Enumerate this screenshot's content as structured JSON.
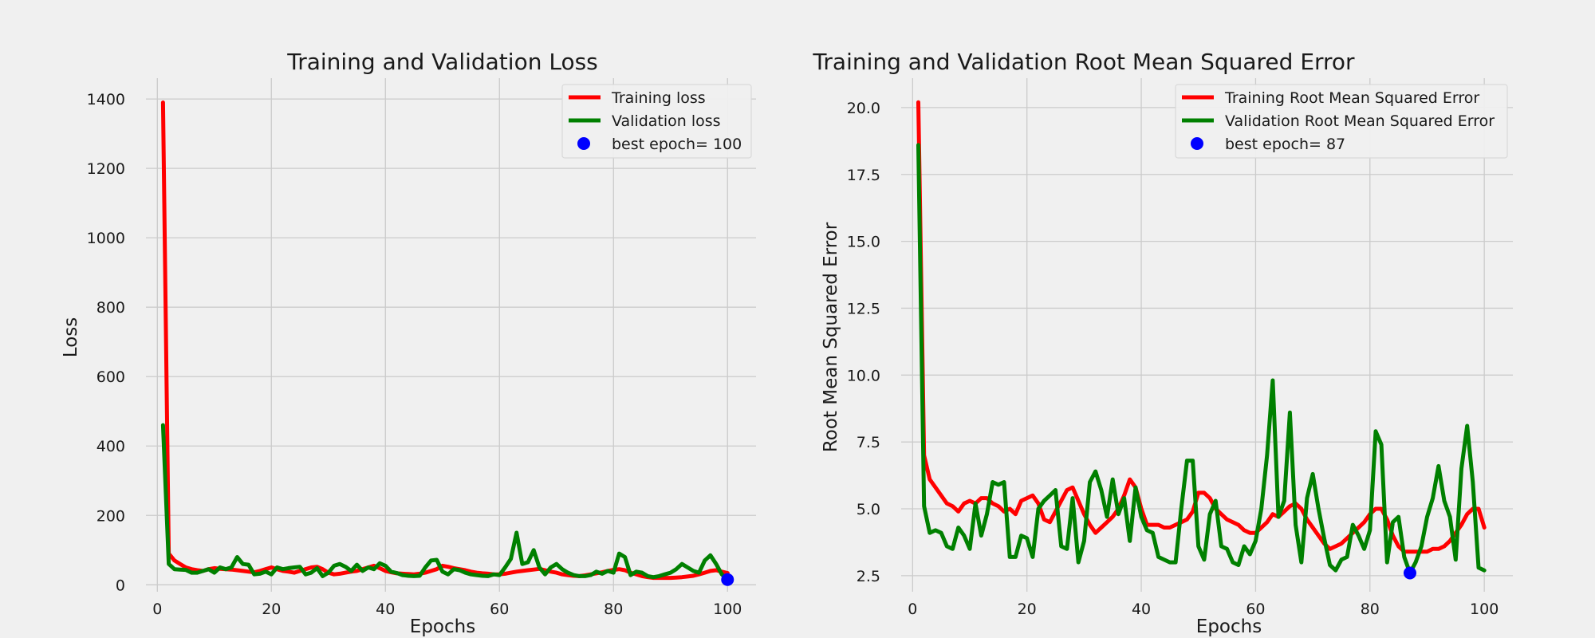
{
  "chart_data": [
    {
      "type": "line",
      "title": "Training and Validation Loss",
      "xlabel": "Epochs",
      "ylabel": "Loss",
      "xlim": [
        -2,
        105
      ],
      "ylim": [
        -20,
        1460
      ],
      "x_ticks": [
        0,
        20,
        40,
        60,
        80,
        100
      ],
      "y_ticks": [
        0,
        200,
        400,
        600,
        800,
        1000,
        1200,
        1400
      ],
      "grid": true,
      "legend_position": "top-right",
      "x": [
        1,
        2,
        3,
        4,
        5,
        6,
        7,
        8,
        9,
        10,
        11,
        12,
        13,
        14,
        15,
        16,
        17,
        18,
        19,
        20,
        21,
        22,
        23,
        24,
        25,
        26,
        27,
        28,
        29,
        30,
        31,
        32,
        33,
        34,
        35,
        36,
        37,
        38,
        39,
        40,
        41,
        42,
        43,
        44,
        45,
        46,
        47,
        48,
        49,
        50,
        51,
        52,
        53,
        54,
        55,
        56,
        57,
        58,
        59,
        60,
        61,
        62,
        63,
        64,
        65,
        66,
        67,
        68,
        69,
        70,
        71,
        72,
        73,
        74,
        75,
        76,
        77,
        78,
        79,
        80,
        81,
        82,
        83,
        84,
        85,
        86,
        87,
        88,
        89,
        90,
        91,
        92,
        93,
        94,
        95,
        96,
        97,
        98,
        99,
        100
      ],
      "series": [
        {
          "name": "Training loss",
          "color": "#ff0000",
          "values": [
            1390,
            90,
            70,
            60,
            50,
            45,
            42,
            40,
            45,
            48,
            46,
            45,
            44,
            42,
            40,
            38,
            36,
            40,
            45,
            50,
            45,
            40,
            38,
            35,
            40,
            45,
            50,
            52,
            45,
            35,
            30,
            32,
            35,
            38,
            40,
            45,
            50,
            55,
            48,
            40,
            36,
            33,
            32,
            31,
            30,
            32,
            35,
            40,
            45,
            55,
            52,
            48,
            45,
            42,
            38,
            35,
            33,
            32,
            30,
            30,
            32,
            35,
            38,
            40,
            42,
            44,
            46,
            42,
            38,
            35,
            30,
            28,
            26,
            25,
            27,
            30,
            33,
            36,
            40,
            43,
            45,
            42,
            35,
            30,
            25,
            22,
            20,
            20,
            20,
            20,
            21,
            22,
            24,
            26,
            30,
            35,
            40,
            42,
            38,
            34
          ]
        },
        {
          "name": "Validation loss",
          "color": "#008000",
          "values": [
            460,
            60,
            45,
            44,
            43,
            35,
            35,
            40,
            45,
            35,
            50,
            45,
            50,
            80,
            60,
            58,
            30,
            32,
            38,
            30,
            50,
            45,
            48,
            50,
            52,
            30,
            35,
            48,
            25,
            35,
            55,
            60,
            52,
            40,
            58,
            40,
            50,
            45,
            62,
            55,
            38,
            34,
            28,
            26,
            25,
            26,
            50,
            70,
            72,
            38,
            30,
            45,
            42,
            35,
            30,
            28,
            26,
            25,
            30,
            28,
            50,
            75,
            150,
            60,
            65,
            100,
            50,
            30,
            50,
            60,
            45,
            35,
            28,
            25,
            25,
            28,
            38,
            32,
            40,
            35,
            90,
            80,
            28,
            38,
            35,
            25,
            22,
            25,
            30,
            35,
            45,
            60,
            50,
            40,
            35,
            70,
            85,
            60,
            30,
            15
          ]
        },
        {
          "name": "best epoch= 100",
          "type": "scatter",
          "color": "#0000ff",
          "x": [
            100
          ],
          "values": [
            15
          ]
        }
      ]
    },
    {
      "type": "line",
      "title": "Training and Validation Root Mean Squared Error",
      "xlabel": "Epochs",
      "ylabel": "Root Mean Squared Error",
      "xlim": [
        -2,
        105
      ],
      "ylim": [
        1.9,
        21.1
      ],
      "x_ticks": [
        0,
        20,
        40,
        60,
        80,
        100
      ],
      "y_ticks": [
        2.5,
        5.0,
        7.5,
        10.0,
        12.5,
        15.0,
        17.5,
        20.0
      ],
      "grid": true,
      "legend_position": "top-right",
      "x": [
        1,
        2,
        3,
        4,
        5,
        6,
        7,
        8,
        9,
        10,
        11,
        12,
        13,
        14,
        15,
        16,
        17,
        18,
        19,
        20,
        21,
        22,
        23,
        24,
        25,
        26,
        27,
        28,
        29,
        30,
        31,
        32,
        33,
        34,
        35,
        36,
        37,
        38,
        39,
        40,
        41,
        42,
        43,
        44,
        45,
        46,
        47,
        48,
        49,
        50,
        51,
        52,
        53,
        54,
        55,
        56,
        57,
        58,
        59,
        60,
        61,
        62,
        63,
        64,
        65,
        66,
        67,
        68,
        69,
        70,
        71,
        72,
        73,
        74,
        75,
        76,
        77,
        78,
        79,
        80,
        81,
        82,
        83,
        84,
        85,
        86,
        87,
        88,
        89,
        90,
        91,
        92,
        93,
        94,
        95,
        96,
        97,
        98,
        99,
        100
      ],
      "series": [
        {
          "name": "Training Root Mean Squared Error",
          "color": "#ff0000",
          "values": [
            20.2,
            7.0,
            6.1,
            5.8,
            5.5,
            5.2,
            5.1,
            4.9,
            5.2,
            5.3,
            5.2,
            5.4,
            5.4,
            5.2,
            5.1,
            4.9,
            5.0,
            4.8,
            5.3,
            5.4,
            5.5,
            5.2,
            4.6,
            4.5,
            4.9,
            5.3,
            5.7,
            5.8,
            5.3,
            4.8,
            4.4,
            4.1,
            4.3,
            4.5,
            4.7,
            5.0,
            5.5,
            6.1,
            5.8,
            5.0,
            4.4,
            4.4,
            4.4,
            4.3,
            4.3,
            4.4,
            4.5,
            4.6,
            4.9,
            5.6,
            5.6,
            5.4,
            5.0,
            4.8,
            4.6,
            4.5,
            4.4,
            4.2,
            4.1,
            4.1,
            4.3,
            4.5,
            4.8,
            4.7,
            4.9,
            5.1,
            5.2,
            5.0,
            4.6,
            4.3,
            4.0,
            3.7,
            3.5,
            3.6,
            3.7,
            3.9,
            4.1,
            4.3,
            4.5,
            4.8,
            5.0,
            5.0,
            4.6,
            4.0,
            3.6,
            3.4,
            3.4,
            3.4,
            3.4,
            3.4,
            3.5,
            3.5,
            3.6,
            3.8,
            4.1,
            4.4,
            4.8,
            5.0,
            5.0,
            4.3
          ]
        },
        {
          "name": "Validation Root Mean Squared Error",
          "color": "#008000",
          "values": [
            18.6,
            5.1,
            4.1,
            4.2,
            4.1,
            3.6,
            3.5,
            4.3,
            4.0,
            3.5,
            5.2,
            4.0,
            4.8,
            6.0,
            5.9,
            6.0,
            3.2,
            3.2,
            4.0,
            3.9,
            3.2,
            5.0,
            5.3,
            5.5,
            5.7,
            3.6,
            3.5,
            5.4,
            3.0,
            3.8,
            6.0,
            6.4,
            5.7,
            4.7,
            6.1,
            4.8,
            5.4,
            3.8,
            5.8,
            4.7,
            4.2,
            4.1,
            3.2,
            3.1,
            3.0,
            3.0,
            5.0,
            6.8,
            6.8,
            3.6,
            3.1,
            4.8,
            5.3,
            3.6,
            3.5,
            3.0,
            2.9,
            3.6,
            3.3,
            3.8,
            5.0,
            7.0,
            9.8,
            4.7,
            5.3,
            8.6,
            4.4,
            3.0,
            5.4,
            6.3,
            5.0,
            3.9,
            2.9,
            2.7,
            3.1,
            3.2,
            4.4,
            4.0,
            3.5,
            4.2,
            7.9,
            7.4,
            3.0,
            4.5,
            4.7,
            3.2,
            2.6,
            3.0,
            3.6,
            4.7,
            5.4,
            6.6,
            5.3,
            4.7,
            3.1,
            6.5,
            8.1,
            6.0,
            2.8,
            2.7
          ]
        },
        {
          "name": "best epoch= 87",
          "type": "scatter",
          "color": "#0000ff",
          "x": [
            87
          ],
          "values": [
            2.6
          ]
        }
      ]
    }
  ]
}
